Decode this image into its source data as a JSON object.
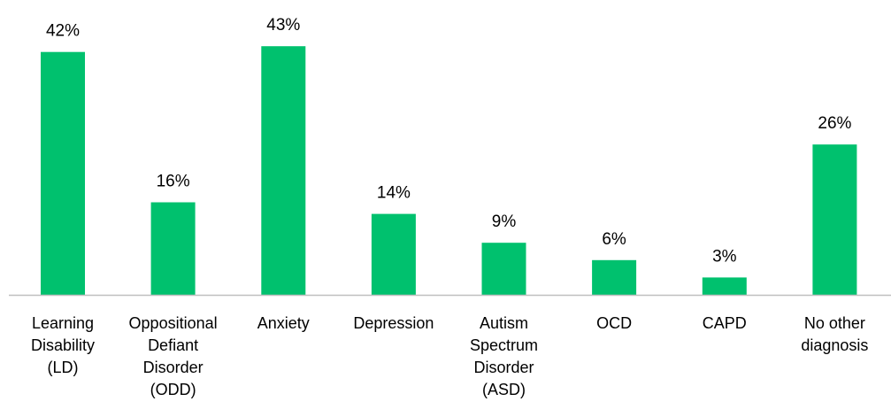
{
  "chart_data": {
    "type": "bar",
    "categories": [
      [
        "Learning",
        "Disability",
        "(LD)"
      ],
      [
        "Oppositional",
        "Defiant",
        "Disorder",
        "(ODD)"
      ],
      [
        "Anxiety"
      ],
      [
        "Depression"
      ],
      [
        "Autism",
        "Spectrum",
        "Disorder",
        "(ASD)"
      ],
      [
        "OCD"
      ],
      [
        "CAPD"
      ],
      [
        "No other",
        "diagnosis"
      ]
    ],
    "values": [
      42,
      16,
      43,
      14,
      9,
      6,
      3,
      26
    ],
    "data_labels": [
      "42%",
      "16%",
      "43%",
      "14%",
      "9%",
      "6%",
      "3%",
      "26%"
    ],
    "unit": "%",
    "title": "",
    "xlabel": "",
    "ylabel": "",
    "ylim": [
      0,
      45
    ],
    "grid": false,
    "legend": "none",
    "colors": {
      "bar": "#00c16e",
      "axis": "#bfbfbf",
      "text": "#000000"
    }
  }
}
